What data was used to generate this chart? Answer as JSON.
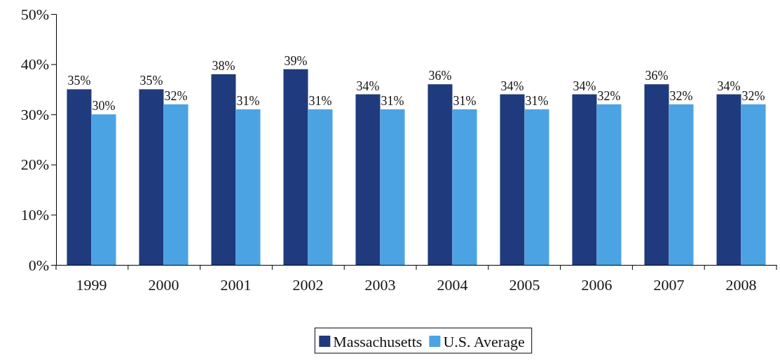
{
  "chart_data": {
    "type": "bar",
    "categories": [
      "1999",
      "2000",
      "2001",
      "2002",
      "2003",
      "2004",
      "2005",
      "2006",
      "2007",
      "2008"
    ],
    "series": [
      {
        "name": "Massachusetts",
        "color": "#1f3b7d",
        "values": [
          35,
          35,
          38,
          39,
          34,
          36,
          34,
          34,
          36,
          34
        ],
        "value_labels": [
          "35%",
          "35%",
          "38%",
          "39%",
          "34%",
          "36%",
          "34%",
          "34%",
          "36%",
          "34%"
        ]
      },
      {
        "name": "U.S. Average",
        "color": "#4ba3e3",
        "values": [
          30,
          32,
          31,
          31,
          31,
          31,
          31,
          32,
          32,
          32
        ],
        "value_labels": [
          "30%",
          "32%",
          "31%",
          "31%",
          "31%",
          "31%",
          "31%",
          "32%",
          "32%",
          "32%"
        ]
      }
    ],
    "ylim": [
      0,
      50
    ],
    "yticks": [
      {
        "value": 0,
        "label": "0%"
      },
      {
        "value": 10,
        "label": "10%"
      },
      {
        "value": 20,
        "label": "20%"
      },
      {
        "value": 30,
        "label": "30%"
      },
      {
        "value": 40,
        "label": "40%"
      },
      {
        "value": 50,
        "label": "50%"
      }
    ],
    "grid": false,
    "legend": "bottom"
  }
}
